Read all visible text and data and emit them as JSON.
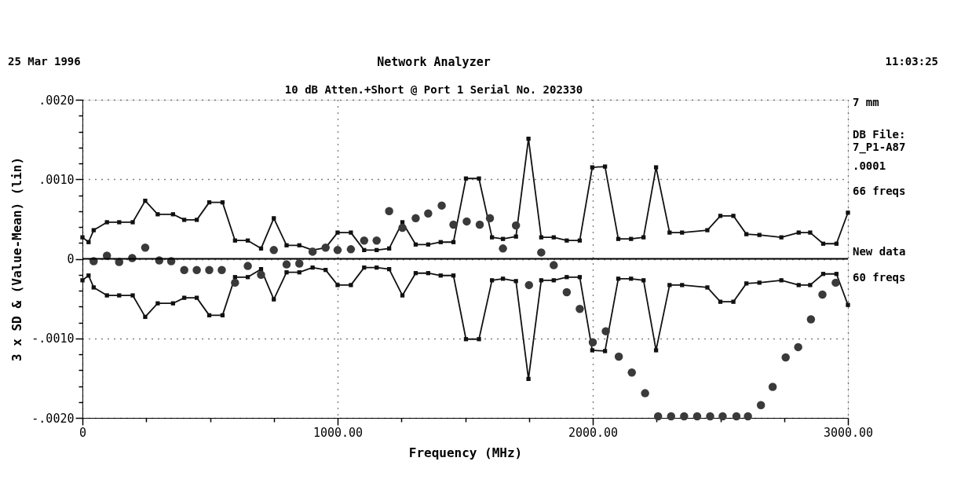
{
  "chart_data": {
    "type": "line",
    "title": "Network Analyzer",
    "subtitle": "10 dB Atten.+Short @ Port 1  Serial No. 202330",
    "xlabel": "Frequency  (MHz)",
    "ylabel": "3 x SD & (Value-Mean)  (lin)",
    "xlim": [
      0,
      3000
    ],
    "xticks": [
      0,
      {
        "value": 250,
        "label": null
      },
      {
        "value": 500,
        "label": null
      },
      {
        "value": 750,
        "label": null
      },
      {
        "value": 1000,
        "label": "1000.00"
      },
      {
        "value": 1250,
        "label": null
      },
      {
        "value": 1500,
        "label": null
      },
      {
        "value": 1750,
        "label": null
      },
      {
        "value": 2000,
        "label": "2000.00"
      },
      {
        "value": 2250,
        "label": null
      },
      {
        "value": 2500,
        "label": null
      },
      {
        "value": 2750,
        "label": null
      },
      {
        "value": 3000,
        "label": "3000.00"
      }
    ],
    "ylim": [
      -0.002,
      0.002
    ],
    "yticks": [
      {
        "value": -0.002,
        "label": "-.0020"
      },
      {
        "value": -0.0018,
        "label": null
      },
      {
        "value": -0.0016,
        "label": null
      },
      {
        "value": -0.0014,
        "label": null
      },
      {
        "value": -0.0012,
        "label": null
      },
      {
        "value": -0.001,
        "label": "-.0010"
      },
      {
        "value": -0.0008,
        "label": null
      },
      {
        "value": -0.0006,
        "label": null
      },
      {
        "value": -0.0004,
        "label": null
      },
      {
        "value": -0.0002,
        "label": null
      },
      0,
      {
        "value": 0.0002,
        "label": null
      },
      {
        "value": 0.0004,
        "label": null
      },
      {
        "value": 0.0006,
        "label": null
      },
      {
        "value": 0.0008,
        "label": null
      },
      {
        "value": 0.001,
        "label": ".0010"
      },
      {
        "value": 0.0012,
        "label": null
      },
      {
        "value": 0.0014,
        "label": null
      },
      {
        "value": 0.0016,
        "label": null
      },
      {
        "value": 0.0018,
        "label": null
      },
      {
        "value": 0.002,
        "label": ".0020"
      }
    ],
    "grid": true,
    "line_style": "solid",
    "ref_lines": [
      {
        "axis": "y",
        "value": 0,
        "color": "#000000",
        "line_style": "solid"
      }
    ],
    "annotations": [
      "25 Mar 1996",
      "11:03:25",
      "7 mm",
      "DB File:",
      "7_P1-A87",
      ".0001",
      "66 freqs",
      "New data",
      "60 freqs"
    ],
    "series": [
      {
        "type": "line",
        "color": "#111111",
        "marker": "square",
        "x": [
          0,
          24,
          44,
          96,
          144,
          197,
          246,
          295,
          355,
          399,
          448,
          497,
          549,
          598,
          648,
          700,
          750,
          800,
          850,
          902,
          953,
          1000,
          1052,
          1104,
          1153,
          1202,
          1254,
          1306,
          1355,
          1404,
          1454,
          1503,
          1554,
          1605,
          1648,
          1699,
          1748,
          1798,
          1847,
          1898,
          1949,
          1998,
          2048,
          2100,
          2150,
          2199,
          2248,
          2301,
          2350,
          2449,
          2500,
          2551,
          2602,
          2653,
          2739,
          2807,
          2852,
          2903,
          2955,
          3000
        ],
        "values": [
          0.00027,
          0.00021,
          0.00036,
          0.00046,
          0.00046,
          0.00046,
          0.00073,
          0.00056,
          0.00056,
          0.00049,
          0.00049,
          0.00071,
          0.00071,
          0.00023,
          0.00023,
          0.00013,
          0.00051,
          0.00017,
          0.00017,
          0.00011,
          0.00014,
          0.00033,
          0.00033,
          0.00011,
          0.00011,
          0.00013,
          0.00046,
          0.00018,
          0.00018,
          0.00021,
          0.00021,
          0.00101,
          0.00101,
          0.00027,
          0.00025,
          0.00028,
          0.00151,
          0.00027,
          0.00027,
          0.00023,
          0.00023,
          0.00115,
          0.00116,
          0.00025,
          0.00025,
          0.00027,
          0.00115,
          0.00033,
          0.00033,
          0.00036,
          0.00054,
          0.00054,
          0.00031,
          0.0003,
          0.00027,
          0.00033,
          0.00033,
          0.00019,
          0.00019,
          0.00058
        ]
      },
      {
        "type": "line",
        "color": "#111111",
        "marker": "square",
        "x": [
          0,
          24,
          44,
          96,
          144,
          197,
          246,
          295,
          355,
          399,
          448,
          497,
          549,
          598,
          648,
          700,
          750,
          800,
          850,
          902,
          953,
          1000,
          1052,
          1104,
          1153,
          1202,
          1254,
          1306,
          1355,
          1404,
          1454,
          1503,
          1554,
          1605,
          1648,
          1699,
          1748,
          1798,
          1847,
          1898,
          1949,
          1998,
          2048,
          2100,
          2150,
          2199,
          2248,
          2301,
          2350,
          2449,
          2500,
          2551,
          2602,
          2653,
          2739,
          2807,
          2852,
          2903,
          2955,
          3000
        ],
        "values": [
          -0.00027,
          -0.00021,
          -0.00036,
          -0.00046,
          -0.00046,
          -0.00046,
          -0.00073,
          -0.00056,
          -0.00056,
          -0.00049,
          -0.00049,
          -0.00071,
          -0.00071,
          -0.00023,
          -0.00023,
          -0.00013,
          -0.00051,
          -0.00017,
          -0.00017,
          -0.00011,
          -0.00014,
          -0.00033,
          -0.00033,
          -0.00011,
          -0.00011,
          -0.00013,
          -0.00046,
          -0.00018,
          -0.00018,
          -0.00021,
          -0.00021,
          -0.00101,
          -0.00101,
          -0.00027,
          -0.00025,
          -0.00028,
          -0.00151,
          -0.00027,
          -0.00027,
          -0.00023,
          -0.00023,
          -0.00115,
          -0.00116,
          -0.00025,
          -0.00025,
          -0.00027,
          -0.00115,
          -0.00033,
          -0.00033,
          -0.00036,
          -0.00054,
          -0.00054,
          -0.00031,
          -0.0003,
          -0.00027,
          -0.00033,
          -0.00033,
          -0.00019,
          -0.00019,
          -0.00058
        ]
      },
      {
        "type": "scatter",
        "color": "#3a3a3a",
        "marker": "circle",
        "x": [
          44,
          96,
          144,
          195,
          246,
          301,
          348,
          399,
          448,
          497,
          546,
          598,
          648,
          700,
          750,
          800,
          850,
          902,
          953,
          1000,
          1052,
          1104,
          1153,
          1202,
          1254,
          1306,
          1355,
          1408,
          1454,
          1506,
          1557,
          1597,
          1648,
          1699,
          1750,
          1798,
          1847,
          1898,
          1949,
          2000,
          2051,
          2102,
          2153,
          2205,
          2256,
          2307,
          2358,
          2409,
          2460,
          2509,
          2563,
          2608,
          2659,
          2705,
          2756,
          2805,
          2855,
          2900,
          2952
        ],
        "values": [
          -3e-05,
          4e-05,
          -4e-05,
          1e-05,
          0.00014,
          -2e-05,
          -3e-05,
          -0.00014,
          -0.00014,
          -0.00014,
          -0.00014,
          -0.0003,
          -9e-05,
          -0.0002,
          0.00011,
          -7e-05,
          -6e-05,
          9e-05,
          0.00014,
          0.00011,
          0.00012,
          0.00023,
          0.00023,
          0.0006,
          0.00039,
          0.00051,
          0.00057,
          0.00067,
          0.00043,
          0.00047,
          0.00043,
          0.00051,
          0.00013,
          0.00042,
          -0.00033,
          8e-05,
          -8e-05,
          -0.00042,
          -0.00063,
          -0.00105,
          -0.00091,
          -0.00123,
          -0.00143,
          -0.00169,
          -0.00198,
          -0.00198,
          -0.00198,
          -0.00198,
          -0.00198,
          -0.00198,
          -0.00198,
          -0.00198,
          -0.00184,
          -0.00161,
          -0.00124,
          -0.00111,
          -0.00076,
          -0.00045,
          -0.0003
        ]
      }
    ]
  }
}
